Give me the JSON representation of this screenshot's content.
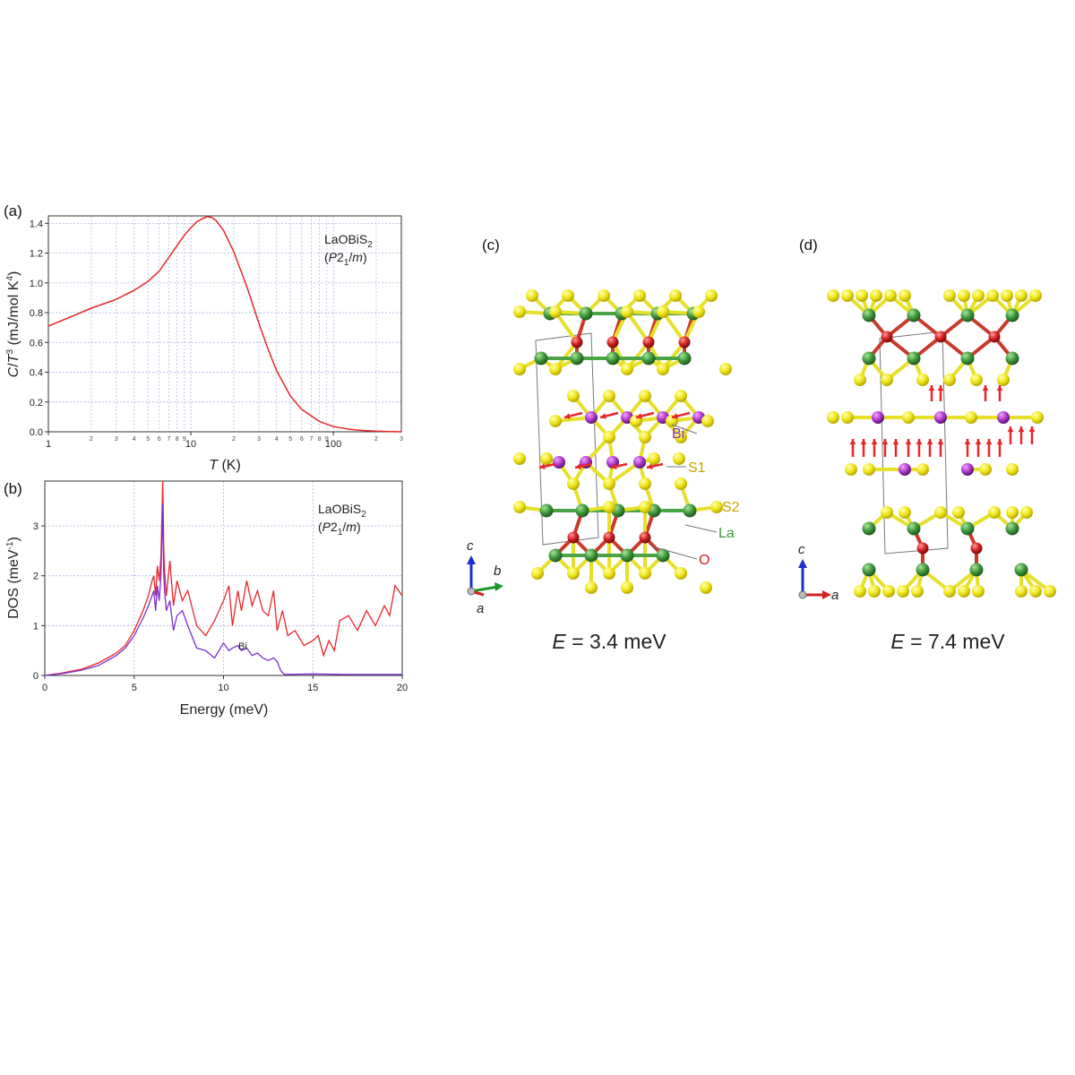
{
  "panels": {
    "a": {
      "label": "(a)"
    },
    "b": {
      "label": "(b)"
    },
    "c": {
      "label": "(c)",
      "energy": "E = 3.4 meV",
      "atoms": {
        "bi": "Bi",
        "s1": "S1",
        "s2": "S2",
        "la": "La",
        "o": "O"
      },
      "axes": {
        "c": "c",
        "b": "b",
        "a": "a"
      }
    },
    "d": {
      "label": "(d)",
      "energy": "E = 7.4 meV",
      "axes": {
        "c": "c",
        "a": "a"
      }
    }
  },
  "colors": {
    "total": "#e8262a",
    "bi": "#7b2fd0",
    "grid": "#9ea6dd",
    "s": "#f0e81a",
    "la": "#3f9a3c",
    "o": "#d42020",
    "bi_atom": "#b23bd0"
  },
  "chart_data": [
    {
      "type": "line",
      "id": "a",
      "xscale": "log",
      "xlim": [
        1,
        300
      ],
      "ylim": [
        0.0,
        1.45
      ],
      "xlabel": "T (K)",
      "ylabel": "C/T3 (mJ/mol K4)",
      "legend": [
        "LaOBiS2",
        "(P21/m)"
      ],
      "x_ticks": [
        "1",
        "10",
        "100"
      ],
      "x_minor_ticks": [
        "2",
        "3",
        "4",
        "5",
        "6",
        "7",
        "8",
        "9",
        "2",
        "3",
        "4",
        "5",
        "6",
        "7",
        "8",
        "9",
        "2",
        "3"
      ],
      "y_ticks": [
        "0.0",
        "0.2",
        "0.4",
        "0.6",
        "0.8",
        "1.0",
        "1.2",
        "1.4"
      ],
      "grid": true,
      "series": [
        {
          "x": [
            1,
            1.5,
            2,
            3,
            4,
            5,
            6,
            7,
            8,
            9,
            10,
            11,
            12,
            13,
            14,
            15,
            17,
            20,
            25,
            30,
            35,
            40,
            50,
            60,
            80,
            100,
            130,
            160,
            200,
            250,
            300
          ],
          "y": [
            0.71,
            0.78,
            0.83,
            0.89,
            0.95,
            1.01,
            1.08,
            1.17,
            1.25,
            1.32,
            1.37,
            1.41,
            1.43,
            1.445,
            1.44,
            1.42,
            1.35,
            1.21,
            0.96,
            0.73,
            0.55,
            0.41,
            0.24,
            0.15,
            0.07,
            0.035,
            0.017,
            0.009,
            0.005,
            0.002,
            0.0
          ]
        }
      ]
    },
    {
      "type": "line",
      "id": "b",
      "xlim": [
        0,
        20
      ],
      "ylim": [
        0,
        3.9
      ],
      "xlabel": "Energy (meV)",
      "ylabel": "DOS (meV-1)",
      "legend": [
        "LaOBiS2",
        "(P21/m)"
      ],
      "x_ticks": [
        "0",
        "5",
        "10",
        "15",
        "20"
      ],
      "y_ticks": [
        "0",
        "1",
        "2",
        "3"
      ],
      "grid": true,
      "series": [
        {
          "x": [
            0,
            1,
            2,
            3,
            4,
            4.5,
            5,
            5.5,
            5.8,
            6.0,
            6.1,
            6.2,
            6.3,
            6.4,
            6.5,
            6.6,
            6.65,
            6.7,
            6.8,
            7.0,
            7.2,
            7.4,
            7.7,
            8.0,
            8.5,
            9.0,
            9.5,
            10.0,
            10.3,
            10.5,
            10.8,
            11.0,
            11.3,
            11.6,
            11.9,
            12.2,
            12.5,
            12.8,
            13.0,
            13.3,
            13.6,
            14.0,
            14.5,
            15.0,
            15.3,
            15.6,
            15.9,
            16.2,
            16.5,
            17.0,
            17.5,
            18.0,
            18.5,
            19.0,
            19.3,
            19.6,
            20.0
          ],
          "y": [
            0.0,
            0.05,
            0.12,
            0.25,
            0.45,
            0.6,
            0.9,
            1.3,
            1.6,
            1.9,
            2.0,
            1.6,
            2.2,
            1.9,
            2.4,
            3.9,
            2.6,
            2.1,
            1.6,
            2.3,
            1.4,
            1.9,
            1.5,
            1.7,
            1.0,
            0.8,
            1.1,
            1.5,
            1.8,
            1.0,
            1.7,
            1.3,
            1.9,
            1.4,
            1.7,
            1.3,
            1.2,
            1.7,
            0.9,
            1.3,
            0.8,
            0.9,
            0.6,
            0.7,
            0.8,
            0.4,
            0.7,
            0.5,
            1.1,
            1.2,
            0.9,
            1.3,
            1.0,
            1.4,
            1.2,
            1.8,
            1.6
          ]
        },
        {
          "name": "Bi",
          "x": [
            0,
            1,
            2,
            3,
            4,
            4.5,
            5,
            5.5,
            5.8,
            6.0,
            6.1,
            6.2,
            6.3,
            6.4,
            6.5,
            6.6,
            6.65,
            6.7,
            6.8,
            7.0,
            7.2,
            7.4,
            7.7,
            8.0,
            8.5,
            9.0,
            9.5,
            10.0,
            10.3,
            10.5,
            10.8,
            11.0,
            11.3,
            11.6,
            11.9,
            12.2,
            12.5,
            12.8,
            13.0,
            13.2,
            13.4,
            15.0,
            17.0,
            20.0
          ],
          "y": [
            0.0,
            0.04,
            0.1,
            0.2,
            0.4,
            0.55,
            0.8,
            1.15,
            1.4,
            1.6,
            1.7,
            1.3,
            1.8,
            1.5,
            2.0,
            3.45,
            2.1,
            1.7,
            1.3,
            1.5,
            0.9,
            1.2,
            1.3,
            1.0,
            0.55,
            0.5,
            0.35,
            0.65,
            0.5,
            0.55,
            0.6,
            0.5,
            0.55,
            0.4,
            0.45,
            0.35,
            0.3,
            0.35,
            0.28,
            0.1,
            0.02,
            0.03,
            0.02,
            0.02
          ]
        }
      ]
    }
  ]
}
